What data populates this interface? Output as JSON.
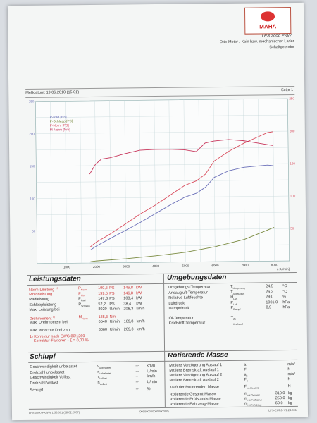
{
  "header": {
    "brand": "MAHA",
    "model": "LPS 3000 PKW",
    "engine_line1": "Otto-Motor / Kein bzw. mechanischer Lader",
    "engine_line2": "Schaltgetriebe",
    "date": "Meßdatum: 19.06.2010 (15:01)",
    "page": "Seite 1"
  },
  "colors": {
    "p_rad": "#6a6fb8",
    "p_schlepp": "#7a8a40",
    "p_norm": "#d94b5c",
    "m_norm": "#c7345a",
    "grid": "#c5d7d9"
  },
  "chart_data": {
    "type": "line",
    "legend": [
      "P-Rad [PS]",
      "P-Schlepp [PS]",
      "P-Norm [PS]",
      "M-Norm [Nm]"
    ],
    "xlabel": "n [U/min]",
    "xlim": [
      0,
      8500
    ],
    "ylim": [
      0,
      250
    ],
    "y2lim": [
      0,
      250
    ],
    "xticks": [
      1000,
      2000,
      3000,
      4000,
      5000,
      6000,
      7000,
      8000
    ],
    "yticks": [
      50,
      100,
      150,
      200,
      250
    ],
    "y2ticks": [
      50,
      100,
      150,
      200,
      250
    ],
    "grid": true,
    "legend_position": "top-left",
    "series": [
      {
        "name": "P-Rad [PS]",
        "color_key": "p_rad",
        "x": [
          1800,
          2000,
          2500,
          3000,
          3500,
          4000,
          4500,
          5000,
          5400,
          5700,
          6000,
          6500,
          7000,
          7500,
          7800,
          8000
        ],
        "y": [
          20,
          26,
          38,
          50,
          62,
          75,
          88,
          100,
          106,
          115,
          130,
          140,
          145,
          147,
          148,
          147
        ]
      },
      {
        "name": "P-Schlepp [PS]",
        "color_key": "p_schlepp",
        "x": [
          1800,
          2000,
          3000,
          4000,
          5000,
          6000,
          7000,
          8000
        ],
        "y": [
          2,
          3,
          6,
          10,
          15,
          23,
          34,
          52
        ]
      },
      {
        "name": "P-Norm [PS]",
        "color_key": "p_norm",
        "x": [
          1800,
          2000,
          2500,
          3000,
          3500,
          4000,
          4500,
          5000,
          5400,
          5700,
          6000,
          6500,
          7000,
          7500,
          7800,
          8000
        ],
        "y": [
          25,
          32,
          45,
          60,
          75,
          88,
          103,
          118,
          125,
          135,
          155,
          170,
          182,
          192,
          198,
          199.5
        ]
      },
      {
        "name": "M-Norm [Nm]",
        "color_key": "m_norm",
        "x": [
          1800,
          2000,
          2200,
          2500,
          3000,
          3500,
          4000,
          4500,
          5000,
          5400,
          5700,
          6000,
          6500,
          7000,
          7500,
          8000
        ],
        "y": [
          137,
          152,
          160,
          162,
          168,
          173,
          174,
          174,
          173,
          170,
          183,
          186,
          188,
          186,
          182,
          178
        ]
      }
    ]
  },
  "leistungsdaten": {
    "title": "Leistungsdaten",
    "rows": [
      {
        "label": "Norm-Leistung",
        "sup": "1)",
        "sym": "P",
        "sub": "Norm",
        "v1": "199,5",
        "u1": "PS",
        "v2": "146,8",
        "u2": "kW",
        "style": "red"
      },
      {
        "label": "Motorleistung",
        "sup": "",
        "sym": "P",
        "sub": "Mot",
        "v1": "199,6",
        "u1": "PS",
        "v2": "146,8",
        "u2": "kW",
        "style": "red"
      },
      {
        "label": "Radleistung",
        "sup": "",
        "sym": "P",
        "sub": "Rad",
        "v1": "147,3",
        "u1": "PS",
        "v2": "108,4",
        "u2": "kW",
        "style": ""
      },
      {
        "label": "Schleppleistung",
        "sup": "",
        "sym": "P",
        "sub": "Schlepp",
        "v1": "52,2",
        "u1": "PS",
        "v2": "38,4",
        "u2": "kW",
        "style": ""
      },
      {
        "label": "Max. Leistung bei",
        "sup": "",
        "sym": "",
        "sub": "",
        "v1": "8020",
        "u1": "U/min",
        "v2": "208,3",
        "u2": "km/h",
        "style": ""
      }
    ],
    "torque_rows": [
      {
        "label": "Drehmoment",
        "sup": "1)",
        "sym": "M",
        "sub": "Norm",
        "v1": "185,5",
        "u1": "Nm",
        "v2": "",
        "u2": "",
        "style": "red"
      },
      {
        "label": "Max. Drehmoment bei",
        "sup": "",
        "sym": "",
        "sub": "",
        "v1": "6540",
        "u1": "U/min",
        "v2": "169,8",
        "u2": "km/h",
        "style": ""
      }
    ],
    "max_rpm": {
      "label": "Max. erreichte Drehzahl",
      "v1": "8060",
      "u1": "U/min",
      "v2": "209,3",
      "u2": "km/h"
    },
    "footnote1": "1) Korrektur nach EWG 80/1269",
    "footnote2": "Korrektur-Faktoren - Σ = 0,00 %"
  },
  "umgebungsdaten": {
    "title": "Umgebungsdaten",
    "rows": [
      {
        "label": "Umgebungs-Temperatur",
        "sym": "T",
        "sub": "Umgebung",
        "val": "24,5",
        "unit": "°C"
      },
      {
        "label": "Ansaugluft-Temperatur",
        "sym": "T",
        "sub": "Ansaugluft",
        "val": "26,2",
        "unit": "°C"
      },
      {
        "label": "Relative Luftfeuchte",
        "sym": "H",
        "sub": "Luft",
        "val": "29,0",
        "unit": "%"
      },
      {
        "label": "Luftdruck",
        "sym": "P",
        "sub": "Luft",
        "val": "1001,0",
        "unit": "hPa"
      },
      {
        "label": "Dampfdruck",
        "sym": "P",
        "sub": "Dampf",
        "val": "8,9",
        "unit": "hPa"
      }
    ],
    "rows2": [
      {
        "label": "Öl-Temperatur",
        "sym": "T",
        "sub": "Öl",
        "val": "",
        "unit": ""
      },
      {
        "label": "Kraftstoff-Temperatur",
        "sym": "T",
        "sub": "Kraftstoff",
        "val": "",
        "unit": ""
      }
    ]
  },
  "schlupf": {
    "title": "Schlupf",
    "rows": [
      {
        "label": "Geschwindigkeit unbelastet",
        "sym": "v",
        "sub": "unbelastet",
        "val": "---",
        "unit": "km/h"
      },
      {
        "label": "Drehzahl unbelastet",
        "sym": "n",
        "sub": "unbelastet",
        "val": "---",
        "unit": "U/min"
      },
      {
        "label": "Geschwindigkeit Vollast",
        "sym": "v",
        "sub": "Vollast",
        "val": "---",
        "unit": "km/h"
      },
      {
        "label": "Drehzahl Vollast",
        "sym": "n",
        "sub": "Vollast",
        "val": "---",
        "unit": "U/min"
      },
      {
        "label": "Schlupf",
        "sym": "",
        "sub": "",
        "val": "---",
        "unit": "%"
      }
    ]
  },
  "rotierende_masse": {
    "title": "Rotierende Masse",
    "rows": [
      {
        "label": "Mittlere Verzögerung Auslauf 1",
        "sym": "a",
        "sub": "1",
        "val": "---",
        "unit": "m/s²"
      },
      {
        "label": "Mittlere Bremskraft Auslauf 1",
        "sym": "F",
        "sub": "1",
        "val": "---",
        "unit": "N"
      },
      {
        "label": "Mittlere Verzögerung Auslauf 2",
        "sym": "a",
        "sub": "2",
        "val": "---",
        "unit": "m/s²"
      },
      {
        "label": "Mittlere Bremskraft Auslauf 2",
        "sym": "F",
        "sub": "2",
        "val": "---",
        "unit": "N"
      },
      {
        "label": "Kraft der Rotierenden Masse",
        "sym": "F",
        "sub": "rot.Gesamt",
        "val": "---",
        "unit": "N"
      },
      {
        "label": "Rotierende Gesamt-Masse",
        "sym": "m",
        "sub": "rot.Gesamt",
        "val": "310,0",
        "unit": "kg"
      },
      {
        "label": "Rotierende Prüfstands-Masse",
        "sym": "m",
        "sub": "rot.Prüfstand",
        "val": "250,0",
        "unit": "kg"
      },
      {
        "label": "Rotierende Fahrzeug-Masse",
        "sym": "m",
        "sub": "rot.Fahrzeug",
        "val": "60,0",
        "unit": "kg"
      }
    ]
  },
  "footer": {
    "left": "LPS 3000 PKW V 1.38.001 (18.02.2007)",
    "middle": "(000000000000000000)",
    "right": "LPS-EURO V1.24.001"
  }
}
